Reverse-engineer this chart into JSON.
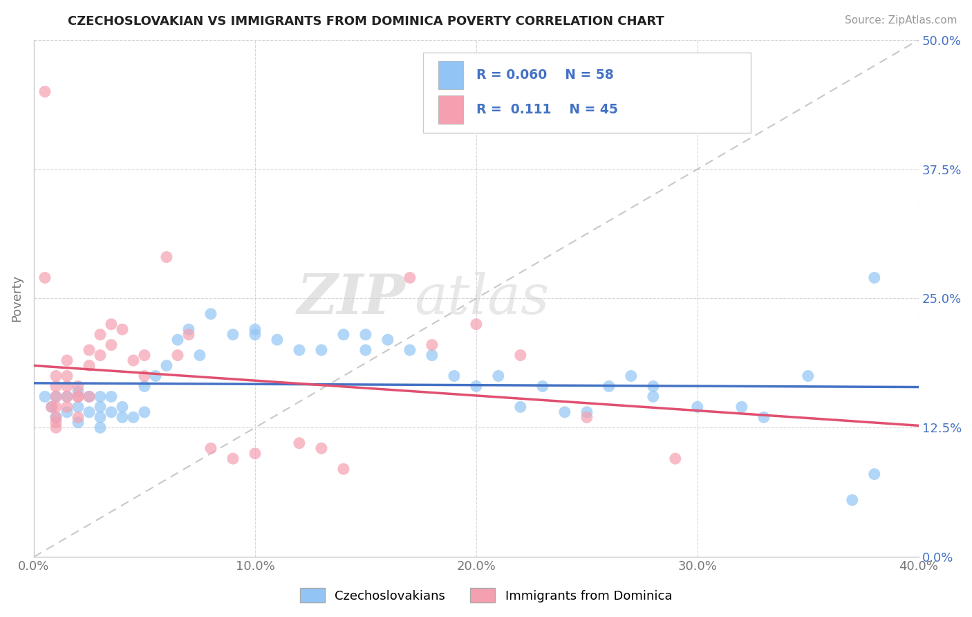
{
  "title": "CZECHOSLOVAKIAN VS IMMIGRANTS FROM DOMINICA POVERTY CORRELATION CHART",
  "source": "Source: ZipAtlas.com",
  "xlabel_ticks": [
    "0.0%",
    "10.0%",
    "20.0%",
    "30.0%",
    "40.0%"
  ],
  "ylabel_ticks": [
    "0.0%",
    "12.5%",
    "25.0%",
    "37.5%",
    "50.0%"
  ],
  "xlim": [
    0.0,
    0.4
  ],
  "ylim": [
    0.0,
    0.5
  ],
  "legend_label1": "Czechoslovakians",
  "legend_label2": "Immigrants from Dominica",
  "r1": "0.060",
  "n1": "58",
  "r2": "0.111",
  "n2": "45",
  "blue_color": "#92C5F5",
  "pink_color": "#F4A0B0",
  "line_blue": "#4472C4",
  "line_pink": "#E05070",
  "watermark_zip": "ZIP",
  "watermark_atlas": "atlas",
  "blue_x": [
    0.005,
    0.008,
    0.01,
    0.01,
    0.015,
    0.015,
    0.02,
    0.02,
    0.02,
    0.025,
    0.025,
    0.03,
    0.03,
    0.03,
    0.03,
    0.035,
    0.035,
    0.04,
    0.04,
    0.045,
    0.05,
    0.05,
    0.055,
    0.06,
    0.065,
    0.07,
    0.075,
    0.08,
    0.09,
    0.1,
    0.1,
    0.11,
    0.12,
    0.13,
    0.14,
    0.15,
    0.15,
    0.16,
    0.17,
    0.18,
    0.19,
    0.2,
    0.21,
    0.22,
    0.23,
    0.24,
    0.25,
    0.26,
    0.27,
    0.28,
    0.28,
    0.3,
    0.32,
    0.33,
    0.35,
    0.37,
    0.38,
    0.38
  ],
  "blue_y": [
    0.155,
    0.145,
    0.135,
    0.155,
    0.14,
    0.155,
    0.13,
    0.145,
    0.16,
    0.14,
    0.155,
    0.125,
    0.135,
    0.145,
    0.155,
    0.14,
    0.155,
    0.135,
    0.145,
    0.135,
    0.14,
    0.165,
    0.175,
    0.185,
    0.21,
    0.22,
    0.195,
    0.235,
    0.215,
    0.215,
    0.22,
    0.21,
    0.2,
    0.2,
    0.215,
    0.2,
    0.215,
    0.21,
    0.2,
    0.195,
    0.175,
    0.165,
    0.175,
    0.145,
    0.165,
    0.14,
    0.14,
    0.165,
    0.175,
    0.155,
    0.165,
    0.145,
    0.145,
    0.135,
    0.175,
    0.055,
    0.27,
    0.08
  ],
  "pink_x": [
    0.005,
    0.008,
    0.01,
    0.01,
    0.01,
    0.01,
    0.01,
    0.015,
    0.015,
    0.015,
    0.015,
    0.015,
    0.02,
    0.02,
    0.02,
    0.02,
    0.025,
    0.025,
    0.025,
    0.03,
    0.03,
    0.035,
    0.035,
    0.04,
    0.045,
    0.05,
    0.05,
    0.06,
    0.065,
    0.07,
    0.08,
    0.09,
    0.1,
    0.12,
    0.13,
    0.14,
    0.17,
    0.18,
    0.2,
    0.22,
    0.25,
    0.29,
    0.005,
    0.01,
    0.01
  ],
  "pink_y": [
    0.45,
    0.145,
    0.13,
    0.155,
    0.165,
    0.175,
    0.135,
    0.145,
    0.155,
    0.165,
    0.175,
    0.19,
    0.155,
    0.165,
    0.135,
    0.155,
    0.155,
    0.185,
    0.2,
    0.195,
    0.215,
    0.205,
    0.225,
    0.22,
    0.19,
    0.195,
    0.175,
    0.29,
    0.195,
    0.215,
    0.105,
    0.095,
    0.1,
    0.11,
    0.105,
    0.085,
    0.27,
    0.205,
    0.225,
    0.195,
    0.135,
    0.095,
    0.27,
    0.125,
    0.145
  ],
  "background_color": "#FFFFFF",
  "grid_color": "#CCCCCC",
  "title_fontsize": 13,
  "source_fontsize": 11,
  "tick_fontsize": 13,
  "ylabel_fontsize": 13
}
